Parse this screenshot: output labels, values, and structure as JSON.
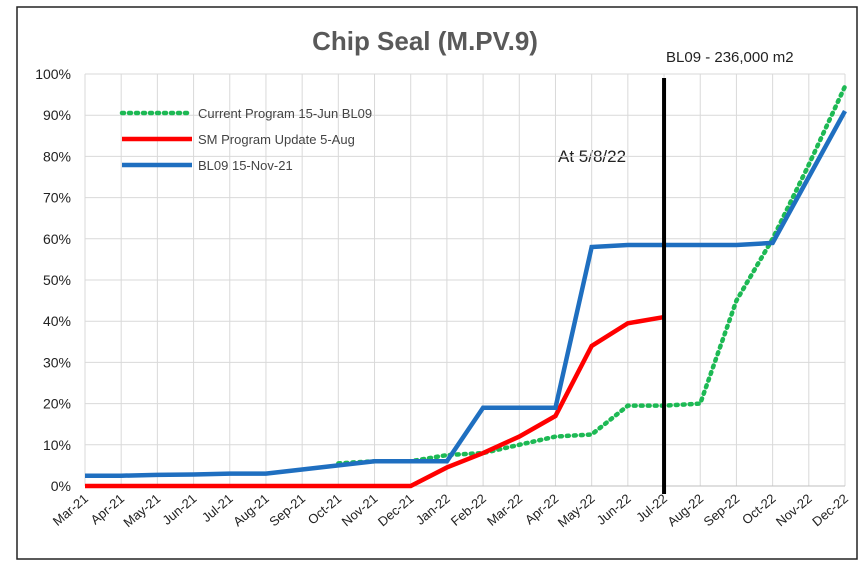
{
  "chart_data": {
    "type": "line",
    "title": "Chip Seal (M.PV.9)",
    "annotations": [
      "At 5/8/22",
      "BL09 - 236,000 m2"
    ],
    "vline": "Jul-22",
    "categories": [
      "Mar-21",
      "Apr-21",
      "May-21",
      "Jun-21",
      "Jul-21",
      "Aug-21",
      "Sep-21",
      "Oct-21",
      "Nov-21",
      "Dec-21",
      "Jan-22",
      "Feb-22",
      "Mar-22",
      "Apr-22",
      "May-22",
      "Jun-22",
      "Jul-22",
      "Aug-22",
      "Sep-22",
      "Oct-22",
      "Nov-22",
      "Dec-22"
    ],
    "series": [
      {
        "name": "Current Program 15-Jun BL09",
        "color": "#1db954",
        "dash": true,
        "values": [
          null,
          null,
          null,
          null,
          null,
          null,
          null,
          5.5,
          6,
          6,
          7.5,
          8,
          10,
          12,
          12.5,
          19.5,
          19.5,
          20,
          45,
          60,
          78,
          97
        ]
      },
      {
        "name": "SM Program Update 5-Aug",
        "color": "#ff0000",
        "values": [
          0,
          0,
          0,
          0,
          0,
          0,
          0,
          0,
          0,
          0,
          4.5,
          8,
          12,
          17,
          34,
          39.5,
          41,
          null,
          null,
          null,
          null,
          null
        ]
      },
      {
        "name": "BL09 15-Nov-21",
        "color": "#1f6fc0",
        "values": [
          2.5,
          2.5,
          2.7,
          2.8,
          3,
          3,
          4,
          5,
          6,
          6,
          6,
          19,
          19,
          19,
          58,
          58.5,
          58.5,
          58.5,
          58.5,
          59,
          75,
          91
        ]
      }
    ],
    "ylim": [
      0,
      100
    ],
    "yticks": [
      {
        "value": 0,
        "label": "0%"
      },
      {
        "value": 10,
        "label": "10%"
      },
      {
        "value": 20,
        "label": "20%"
      },
      {
        "value": 30,
        "label": "30%"
      },
      {
        "value": 40,
        "label": "40%"
      },
      {
        "value": 50,
        "label": "50%"
      },
      {
        "value": 60,
        "label": "60%"
      },
      {
        "value": 70,
        "label": "70%"
      },
      {
        "value": 80,
        "label": "80%"
      },
      {
        "value": 90,
        "label": "90%"
      },
      {
        "value": 100,
        "label": "100%"
      }
    ],
    "grid": true
  }
}
